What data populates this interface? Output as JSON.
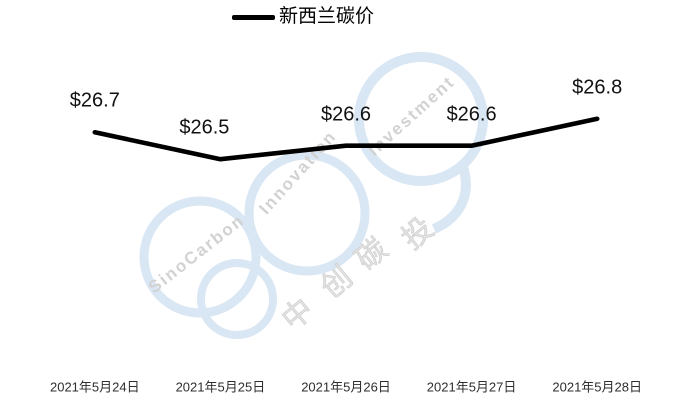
{
  "legend": {
    "series_label": "新西兰碳价"
  },
  "chart_data": {
    "type": "line",
    "title": "新西兰碳价",
    "categories": [
      "2021年5月24日",
      "2021年5月25日",
      "2021年5月26日",
      "2021年5月27日",
      "2021年5月28日"
    ],
    "series": [
      {
        "name": "新西兰碳价",
        "values": [
          26.7,
          26.5,
          26.6,
          26.6,
          26.8
        ]
      }
    ],
    "values": [
      26.7,
      26.5,
      26.6,
      26.6,
      26.8
    ],
    "data_labels": [
      "$26.7",
      "$26.5",
      "$26.6",
      "$26.6",
      "$26.8"
    ],
    "xlabel": "",
    "ylabel": "",
    "ylim": [
      26.45,
      26.85
    ],
    "grid": false,
    "axes_visible": false,
    "legend_position": "top-center",
    "line_color": "#000000"
  },
  "watermark": {
    "latin_words": [
      "SinoCarbon",
      "Innovation",
      "Investment"
    ],
    "cjk_text": "中创碳投",
    "cjk_chars": [
      "中",
      "创",
      "碳",
      "投"
    ],
    "ring_color": "#d9e6f3",
    "text_color": "#d2d2d2"
  },
  "colors": {
    "background": "#ffffff",
    "line": "#000000",
    "data_label_text": "#111111",
    "axis_label_text": "#2e2e2e"
  }
}
